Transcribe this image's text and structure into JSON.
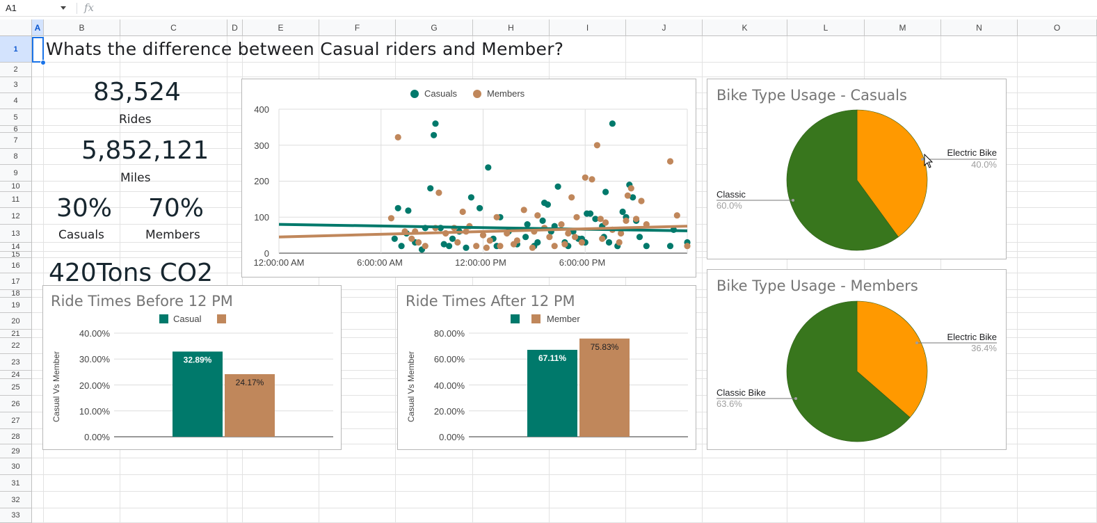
{
  "name_box": "A1",
  "fx_symbol": "fx",
  "columns": [
    "A",
    "B",
    "C",
    "D",
    "E",
    "F",
    "G",
    "H",
    "I",
    "J",
    "K",
    "L",
    "M",
    "N",
    "O"
  ],
  "rows": [
    "1",
    "2",
    "3",
    "4",
    "5",
    "6",
    "7",
    "8",
    "9",
    "10",
    "11",
    "12",
    "13",
    "14",
    "15",
    "16",
    "17",
    "18",
    "19",
    "20",
    "21",
    "22",
    "23",
    "24",
    "25",
    "26",
    "27",
    "28",
    "29",
    "30",
    "31",
    "32",
    "33"
  ],
  "heading": "Whats the difference between Casual riders and Member?",
  "stats": {
    "rides_value": "83,524",
    "rides_label": "Rides",
    "miles_value": "5,852,121",
    "miles_label": "Miles",
    "casual_pct": "30%",
    "casual_label": "Casuals",
    "member_pct": "70%",
    "member_label": "Members",
    "co2": "420Tons CO2"
  },
  "colors": {
    "casual": "#00796b",
    "member": "#c0875b",
    "classic": "#38761d",
    "electric": "#ff9900",
    "selection": "#1a73e8"
  },
  "charts": {
    "scatter": {
      "legend_casual": "Casuals",
      "legend_member": "Members",
      "y_ticks": [
        "400",
        "300",
        "200",
        "100",
        "0"
      ],
      "x_ticks": [
        "12:00:00 AM",
        "6:00:00 AM",
        "12:00:00 PM",
        "6:00:00 PM"
      ]
    },
    "before": {
      "title": "Ride Times Before 12 PM",
      "legend_casual": "Casual",
      "legend_member": "",
      "ylabel": "Casual Vs Member",
      "y_ticks": [
        "40.00%",
        "30.00%",
        "20.00%",
        "10.00%",
        "0.00%"
      ],
      "casual_label": "32.89%",
      "member_label": "24.17%"
    },
    "after": {
      "title": "Ride Times After 12 PM",
      "legend_casual": "",
      "legend_member": "Member",
      "ylabel": "Casual Vs Member",
      "y_ticks": [
        "80.00%",
        "60.00%",
        "40.00%",
        "20.00%",
        "0.00%"
      ],
      "casual_label": "67.11%",
      "member_label": "75.83%"
    },
    "pie_casual": {
      "title": "Bike Type Usage - Casuals",
      "electric_label": "Electric Bike",
      "electric_pct": "40.0%",
      "classic_label": "Classic",
      "classic_pct": "60.0%"
    },
    "pie_member": {
      "title": "Bike Type Usage - Members",
      "electric_label": "Electric Bike",
      "electric_pct": "36.4%",
      "classic_label": "Classic Bike",
      "classic_pct": "63.6%"
    }
  },
  "chart_data": [
    {
      "type": "scatter",
      "title": "",
      "xlabel": "",
      "ylabel": "",
      "x_unit": "hour of day",
      "xlim": [
        0,
        24
      ],
      "ylim": [
        0,
        400
      ],
      "legend_position": "top",
      "grid": true,
      "series": [
        {
          "name": "Casuals",
          "color": "#00796b",
          "trendline": [
            [
              0,
              80
            ],
            [
              24,
              62
            ]
          ],
          "points": [
            [
              7.0,
              125
            ],
            [
              7.6,
              118
            ],
            [
              8.9,
              180
            ],
            [
              9.1,
              328
            ],
            [
              9.2,
              360
            ],
            [
              9.5,
              70
            ],
            [
              6.8,
              40
            ],
            [
              7.2,
              20
            ],
            [
              7.5,
              55
            ],
            [
              8.0,
              30
            ],
            [
              8.4,
              10
            ],
            [
              9.7,
              25
            ],
            [
              10.2,
              40
            ],
            [
              10.6,
              60
            ],
            [
              11.0,
              15
            ],
            [
              11.3,
              155
            ],
            [
              11.8,
              125
            ],
            [
              12.3,
              238
            ],
            [
              12.8,
              20
            ],
            [
              13.5,
              60
            ],
            [
              14.0,
              25
            ],
            [
              14.5,
              45
            ],
            [
              15.0,
              20
            ],
            [
              15.5,
              90
            ],
            [
              15.6,
              140
            ],
            [
              15.8,
              135
            ],
            [
              16.2,
              75
            ],
            [
              16.4,
              185
            ],
            [
              16.8,
              30
            ],
            [
              17.0,
              20
            ],
            [
              17.3,
              60
            ],
            [
              17.6,
              40
            ],
            [
              18.0,
              30
            ],
            [
              18.3,
              110
            ],
            [
              18.6,
              95
            ],
            [
              19.0,
              75
            ],
            [
              19.2,
              170
            ],
            [
              19.4,
              30
            ],
            [
              19.6,
              360
            ],
            [
              19.9,
              20
            ],
            [
              20.2,
              115
            ],
            [
              20.4,
              100
            ],
            [
              20.6,
              190
            ],
            [
              20.8,
              155
            ],
            [
              21.0,
              90
            ],
            [
              21.2,
              45
            ],
            [
              21.6,
              20
            ],
            [
              23.0,
              20
            ],
            [
              23.2,
              65
            ],
            [
              24.0,
              30
            ],
            [
              13.0,
              100
            ],
            [
              14.6,
              80
            ],
            [
              16.0,
              60
            ],
            [
              18.1,
              110
            ],
            [
              17.8,
              40
            ],
            [
              8.6,
              70
            ],
            [
              10.0,
              20
            ],
            [
              12.6,
              40
            ],
            [
              15.2,
              30
            ],
            [
              19.1,
              45
            ]
          ]
        },
        {
          "name": "Members",
          "color": "#c0875b",
          "trendline": [
            [
              0,
              45
            ],
            [
              24,
              75
            ]
          ],
          "points": [
            [
              6.6,
              97
            ],
            [
              7.0,
              322
            ],
            [
              7.4,
              60
            ],
            [
              7.8,
              40
            ],
            [
              8.2,
              30
            ],
            [
              8.6,
              20
            ],
            [
              9.2,
              70
            ],
            [
              9.4,
              168
            ],
            [
              9.8,
              55
            ],
            [
              10.3,
              70
            ],
            [
              10.8,
              115
            ],
            [
              11.2,
              75
            ],
            [
              11.6,
              20
            ],
            [
              12.0,
              50
            ],
            [
              12.4,
              35
            ],
            [
              12.8,
              100
            ],
            [
              13.4,
              55
            ],
            [
              13.8,
              25
            ],
            [
              14.4,
              120
            ],
            [
              14.9,
              15
            ],
            [
              15.2,
              105
            ],
            [
              15.6,
              70
            ],
            [
              15.9,
              45
            ],
            [
              16.2,
              20
            ],
            [
              16.6,
              80
            ],
            [
              17.0,
              55
            ],
            [
              17.2,
              155
            ],
            [
              17.5,
              100
            ],
            [
              17.8,
              30
            ],
            [
              18.0,
              210
            ],
            [
              18.4,
              205
            ],
            [
              18.7,
              300
            ],
            [
              19.0,
              40
            ],
            [
              19.2,
              85
            ],
            [
              19.6,
              65
            ],
            [
              20.0,
              30
            ],
            [
              20.4,
              90
            ],
            [
              20.5,
              160
            ],
            [
              20.7,
              180
            ],
            [
              21.0,
              95
            ],
            [
              21.3,
              145
            ],
            [
              21.6,
              80
            ],
            [
              23.0,
              255
            ],
            [
              23.4,
              105
            ],
            [
              24.0,
              20
            ],
            [
              8.0,
              60
            ],
            [
              10.5,
              30
            ],
            [
              13.0,
              20
            ],
            [
              15.0,
              60
            ],
            [
              16.8,
              25
            ],
            [
              18.9,
              95
            ],
            [
              11.0,
              60
            ],
            [
              12.2,
              15
            ],
            [
              14.0,
              35
            ],
            [
              17.4,
              45
            ],
            [
              20.1,
              55
            ]
          ]
        }
      ]
    },
    {
      "type": "bar",
      "title": "Ride Times Before 12 PM",
      "ylabel": "Casual Vs Member",
      "ylim": [
        0,
        0.4
      ],
      "legend_position": "top",
      "series": [
        {
          "name": "Casual",
          "values": [
            0.3289
          ]
        },
        {
          "values": [
            0.2417
          ]
        }
      ]
    },
    {
      "type": "bar",
      "title": "Ride Times After 12 PM",
      "ylabel": "Casual Vs Member",
      "ylim": [
        0,
        0.8
      ],
      "legend_position": "top",
      "series": [
        {
          "values": [
            0.6711
          ]
        },
        {
          "name": "Member",
          "values": [
            0.7583
          ]
        }
      ]
    },
    {
      "type": "pie",
      "title": "Bike Type Usage - Casuals",
      "labels": [
        "Electric Bike",
        "Classic"
      ],
      "values": [
        40.0,
        60.0
      ],
      "colors": [
        "#ff9900",
        "#38761d"
      ]
    },
    {
      "type": "pie",
      "title": "Bike Type Usage - Members",
      "labels": [
        "Electric Bike",
        "Classic Bike"
      ],
      "values": [
        36.4,
        63.6
      ],
      "colors": [
        "#ff9900",
        "#38761d"
      ]
    }
  ]
}
